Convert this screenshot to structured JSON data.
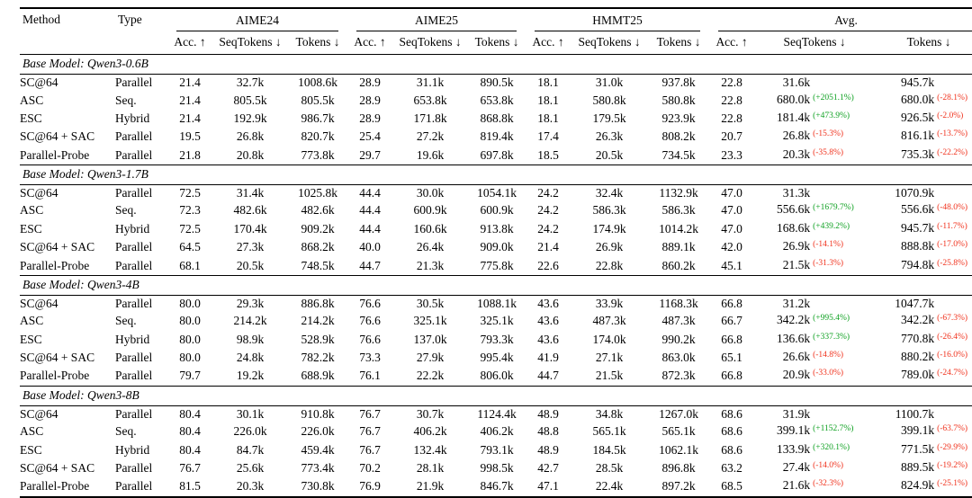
{
  "table": {
    "headers": {
      "method": "Method",
      "type": "Type",
      "acc": "Acc. ↑",
      "seq_tokens": "SeqTokens ↓",
      "tokens": "Tokens ↓"
    },
    "groups": [
      "AIME24",
      "AIME25",
      "HMMT25",
      "Avg."
    ],
    "colors": {
      "positive_pct": "#0fa122",
      "negative_pct": "#f0311c"
    },
    "blocks": [
      {
        "label": "Base Model: Qwen3-0.6B",
        "rows": [
          {
            "method": "SC@64",
            "type": "Parallel",
            "aime24": [
              "21.4",
              "32.7k",
              "1008.6k"
            ],
            "aime25": [
              "28.9",
              "31.1k",
              "890.5k"
            ],
            "hmmt25": [
              "18.1",
              "31.0k",
              "937.8k"
            ],
            "avg": [
              "22.8",
              "31.6k",
              "945.7k"
            ],
            "seq_pct": null,
            "tok_pct": null
          },
          {
            "method": "ASC",
            "type": "Seq.",
            "aime24": [
              "21.4",
              "805.5k",
              "805.5k"
            ],
            "aime25": [
              "28.9",
              "653.8k",
              "653.8k"
            ],
            "hmmt25": [
              "18.1",
              "580.8k",
              "580.8k"
            ],
            "avg": [
              "22.8",
              "680.0k",
              "680.0k"
            ],
            "seq_pct": "+2051.1%",
            "tok_pct": "-28.1%"
          },
          {
            "method": "ESC",
            "type": "Hybrid",
            "aime24": [
              "21.4",
              "192.9k",
              "986.7k"
            ],
            "aime25": [
              "28.9",
              "171.8k",
              "868.8k"
            ],
            "hmmt25": [
              "18.1",
              "179.5k",
              "923.9k"
            ],
            "avg": [
              "22.8",
              "181.4k",
              "926.5k"
            ],
            "seq_pct": "+473.9%",
            "tok_pct": "-2.0%"
          },
          {
            "method": "SC@64 + SAC",
            "type": "Parallel",
            "aime24": [
              "19.5",
              "26.8k",
              "820.7k"
            ],
            "aime25": [
              "25.4",
              "27.2k",
              "819.4k"
            ],
            "hmmt25": [
              "17.4",
              "26.3k",
              "808.2k"
            ],
            "avg": [
              "20.7",
              "26.8k",
              "816.1k"
            ],
            "seq_pct": "-15.3%",
            "tok_pct": "-13.7%"
          },
          {
            "method": "Parallel-Probe",
            "type": "Parallel",
            "aime24": [
              "21.8",
              "20.8k",
              "773.8k"
            ],
            "aime25": [
              "29.7",
              "19.6k",
              "697.8k"
            ],
            "hmmt25": [
              "18.5",
              "20.5k",
              "734.5k"
            ],
            "avg": [
              "23.3",
              "20.3k",
              "735.3k"
            ],
            "seq_pct": "-35.8%",
            "tok_pct": "-22.2%"
          }
        ]
      },
      {
        "label": "Base Model: Qwen3-1.7B",
        "rows": [
          {
            "method": "SC@64",
            "type": "Parallel",
            "aime24": [
              "72.5",
              "31.4k",
              "1025.8k"
            ],
            "aime25": [
              "44.4",
              "30.0k",
              "1054.1k"
            ],
            "hmmt25": [
              "24.2",
              "32.4k",
              "1132.9k"
            ],
            "avg": [
              "47.0",
              "31.3k",
              "1070.9k"
            ],
            "seq_pct": null,
            "tok_pct": null
          },
          {
            "method": "ASC",
            "type": "Seq.",
            "aime24": [
              "72.3",
              "482.6k",
              "482.6k"
            ],
            "aime25": [
              "44.4",
              "600.9k",
              "600.9k"
            ],
            "hmmt25": [
              "24.2",
              "586.3k",
              "586.3k"
            ],
            "avg": [
              "47.0",
              "556.6k",
              "556.6k"
            ],
            "seq_pct": "+1679.7%",
            "tok_pct": "-48.0%"
          },
          {
            "method": "ESC",
            "type": "Hybrid",
            "aime24": [
              "72.5",
              "170.4k",
              "909.2k"
            ],
            "aime25": [
              "44.4",
              "160.6k",
              "913.8k"
            ],
            "hmmt25": [
              "24.2",
              "174.9k",
              "1014.2k"
            ],
            "avg": [
              "47.0",
              "168.6k",
              "945.7k"
            ],
            "seq_pct": "+439.2%",
            "tok_pct": "-11.7%"
          },
          {
            "method": "SC@64 + SAC",
            "type": "Parallel",
            "aime24": [
              "64.5",
              "27.3k",
              "868.2k"
            ],
            "aime25": [
              "40.0",
              "26.4k",
              "909.0k"
            ],
            "hmmt25": [
              "21.4",
              "26.9k",
              "889.1k"
            ],
            "avg": [
              "42.0",
              "26.9k",
              "888.8k"
            ],
            "seq_pct": "-14.1%",
            "tok_pct": "-17.0%"
          },
          {
            "method": "Parallel-Probe",
            "type": "Parallel",
            "aime24": [
              "68.1",
              "20.5k",
              "748.5k"
            ],
            "aime25": [
              "44.7",
              "21.3k",
              "775.8k"
            ],
            "hmmt25": [
              "22.6",
              "22.8k",
              "860.2k"
            ],
            "avg": [
              "45.1",
              "21.5k",
              "794.8k"
            ],
            "seq_pct": "-31.3%",
            "tok_pct": "-25.8%"
          }
        ]
      },
      {
        "label": "Base Model: Qwen3-4B",
        "rows": [
          {
            "method": "SC@64",
            "type": "Parallel",
            "aime24": [
              "80.0",
              "29.3k",
              "886.8k"
            ],
            "aime25": [
              "76.6",
              "30.5k",
              "1088.1k"
            ],
            "hmmt25": [
              "43.6",
              "33.9k",
              "1168.3k"
            ],
            "avg": [
              "66.8",
              "31.2k",
              "1047.7k"
            ],
            "seq_pct": null,
            "tok_pct": null
          },
          {
            "method": "ASC",
            "type": "Seq.",
            "aime24": [
              "80.0",
              "214.2k",
              "214.2k"
            ],
            "aime25": [
              "76.6",
              "325.1k",
              "325.1k"
            ],
            "hmmt25": [
              "43.6",
              "487.3k",
              "487.3k"
            ],
            "avg": [
              "66.7",
              "342.2k",
              "342.2k"
            ],
            "seq_pct": "+995.4%",
            "tok_pct": "-67.3%"
          },
          {
            "method": "ESC",
            "type": "Hybrid",
            "aime24": [
              "80.0",
              "98.9k",
              "528.9k"
            ],
            "aime25": [
              "76.6",
              "137.0k",
              "793.3k"
            ],
            "hmmt25": [
              "43.6",
              "174.0k",
              "990.2k"
            ],
            "avg": [
              "66.8",
              "136.6k",
              "770.8k"
            ],
            "seq_pct": "+337.3%",
            "tok_pct": "-26.4%"
          },
          {
            "method": "SC@64 + SAC",
            "type": "Parallel",
            "aime24": [
              "80.0",
              "24.8k",
              "782.2k"
            ],
            "aime25": [
              "73.3",
              "27.9k",
              "995.4k"
            ],
            "hmmt25": [
              "41.9",
              "27.1k",
              "863.0k"
            ],
            "avg": [
              "65.1",
              "26.6k",
              "880.2k"
            ],
            "seq_pct": "-14.8%",
            "tok_pct": "-16.0%"
          },
          {
            "method": "Parallel-Probe",
            "type": "Parallel",
            "aime24": [
              "79.7",
              "19.2k",
              "688.9k"
            ],
            "aime25": [
              "76.1",
              "22.2k",
              "806.0k"
            ],
            "hmmt25": [
              "44.7",
              "21.5k",
              "872.3k"
            ],
            "avg": [
              "66.8",
              "20.9k",
              "789.0k"
            ],
            "seq_pct": "-33.0%",
            "tok_pct": "-24.7%"
          }
        ]
      },
      {
        "label": "Base Model: Qwen3-8B",
        "rows": [
          {
            "method": "SC@64",
            "type": "Parallel",
            "aime24": [
              "80.4",
              "30.1k",
              "910.8k"
            ],
            "aime25": [
              "76.7",
              "30.7k",
              "1124.4k"
            ],
            "hmmt25": [
              "48.9",
              "34.8k",
              "1267.0k"
            ],
            "avg": [
              "68.6",
              "31.9k",
              "1100.7k"
            ],
            "seq_pct": null,
            "tok_pct": null
          },
          {
            "method": "ASC",
            "type": "Seq.",
            "aime24": [
              "80.4",
              "226.0k",
              "226.0k"
            ],
            "aime25": [
              "76.7",
              "406.2k",
              "406.2k"
            ],
            "hmmt25": [
              "48.8",
              "565.1k",
              "565.1k"
            ],
            "avg": [
              "68.6",
              "399.1k",
              "399.1k"
            ],
            "seq_pct": "+1152.7%",
            "tok_pct": "-63.7%"
          },
          {
            "method": "ESC",
            "type": "Hybrid",
            "aime24": [
              "80.4",
              "84.7k",
              "459.4k"
            ],
            "aime25": [
              "76.7",
              "132.4k",
              "793.1k"
            ],
            "hmmt25": [
              "48.9",
              "184.5k",
              "1062.1k"
            ],
            "avg": [
              "68.6",
              "133.9k",
              "771.5k"
            ],
            "seq_pct": "+320.1%",
            "tok_pct": "-29.9%"
          },
          {
            "method": "SC@64 + SAC",
            "type": "Parallel",
            "aime24": [
              "76.7",
              "25.6k",
              "773.4k"
            ],
            "aime25": [
              "70.2",
              "28.1k",
              "998.5k"
            ],
            "hmmt25": [
              "42.7",
              "28.5k",
              "896.8k"
            ],
            "avg": [
              "63.2",
              "27.4k",
              "889.5k"
            ],
            "seq_pct": "-14.0%",
            "tok_pct": "-19.2%"
          },
          {
            "method": "Parallel-Probe",
            "type": "Parallel",
            "aime24": [
              "81.5",
              "20.3k",
              "730.8k"
            ],
            "aime25": [
              "76.9",
              "21.9k",
              "846.7k"
            ],
            "hmmt25": [
              "47.1",
              "22.4k",
              "897.2k"
            ],
            "avg": [
              "68.5",
              "21.6k",
              "824.9k"
            ],
            "seq_pct": "-32.3%",
            "tok_pct": "-25.1%"
          }
        ]
      }
    ]
  }
}
